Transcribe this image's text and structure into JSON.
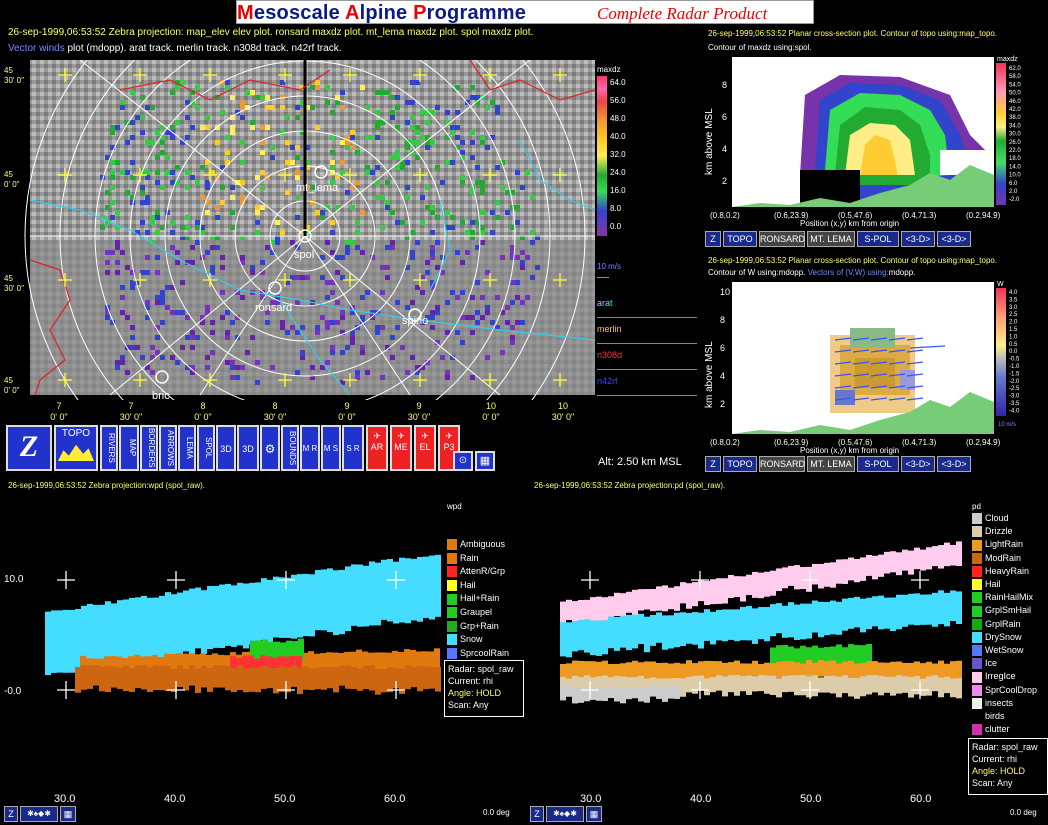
{
  "banner": {
    "w1_first": "M",
    "w1_rest": "esoscale ",
    "w2_first": "A",
    "w2_rest": "lpine ",
    "w3_first": "P",
    "w3_rest": "rogramme",
    "subtitle": "Complete Radar Product"
  },
  "main_plot": {
    "line1": "26-sep-1999,06:53:52  Zebra projection: map_elev elev plot.  ronsard maxdz plot.  mt_lema maxdz plot.  spol maxdz plot.",
    "line2_colored": "Vector winds",
    "line2_rest": " plot (mdopp). arat track.   merlin track.   n308d track.   n42rf track.",
    "lat_labels": [
      "45\n30' 0\"",
      "45\n0' 0\"",
      "45\n30' 0\"",
      "45\n0' 0\""
    ],
    "lon_labels": [
      "7\n0' 0\"",
      "7\n30' 0\"",
      "8\n0' 0\"",
      "8\n30' 0\"",
      "9\n0' 0\"",
      "9\n30' 0\"",
      "10\n0' 0\"",
      "10\n30' 0\""
    ],
    "site_labels": [
      "mt_lema",
      "spol",
      "ronsard",
      "spino",
      "bric"
    ],
    "altitude": "Alt: 2.50 km MSL",
    "scale_title": "maxdz",
    "scale_values": [
      "64.0",
      "56.0",
      "48.0",
      "40.0",
      "32.0",
      "24.0",
      "16.0",
      "8.0",
      "0.0"
    ],
    "vector_label": "10 m/s",
    "tracks": [
      {
        "name": "arat",
        "color": "#66ddff"
      },
      {
        "name": "merlin",
        "color": "#ffcc33"
      },
      {
        "name": "n308d",
        "color": "#ff3333"
      },
      {
        "name": "n42rf",
        "color": "#3344ff"
      }
    ]
  },
  "toolbar": {
    "z": "Z",
    "topo": "TOPO",
    "rivers": "RIVERS",
    "map": "MAP",
    "borders": "BORDERS",
    "arrows": "ARROWS",
    "lema": "LEMA",
    "spol": "SPOL",
    "3d_a": "3D",
    "3d_b": "3D",
    "bounds": "BOUNDS",
    "mr": "M R",
    "ms": "M S",
    "sr": "S R",
    "ar": "AR",
    "me": "ME",
    "el": "EL",
    "p3": "P3"
  },
  "xsec_top": {
    "line1": "26-sep-1999,06:53:52  Planar cross-section plot.  Contour of topo using:map_topo.",
    "line2": "Contour of maxdz using:spol.",
    "ylabel": "km above MSL",
    "y_ticks": [
      "8",
      "6",
      "4",
      "2"
    ],
    "x_ticks": [
      "(0.8,0.2)",
      "(0.6,23.9)",
      "(0.5,47.6)",
      "(0.4,71.3)",
      "(0.2,94.9)"
    ],
    "xlabel": "Position (x,y) km from origin",
    "scale_title": "maxdz",
    "scale_values": [
      "62.0",
      "58.0",
      "54.0",
      "50.0",
      "46.0",
      "42.0",
      "38.0",
      "34.0",
      "30.0",
      "26.0",
      "22.0",
      "18.0",
      "14.0",
      "10.0",
      "6.0",
      "2.0",
      "-2.0"
    ],
    "buttons": [
      "Z",
      "TOPO",
      "RONSARD",
      "MT. LEMA",
      "S-POL",
      "<3-D>",
      "<3-D>"
    ]
  },
  "xsec_mid": {
    "line1": "26-sep-1999,06:53:52  Planar cross-section plot.  Contour of topo using:map_topo.",
    "line2a": "Contour of W using:mdopp.  ",
    "line2b": "Vectors of (V,W) using:",
    "line2c": "mdopp.",
    "ylabel": "km above MSL",
    "y_ticks": [
      "10",
      "8",
      "6",
      "4",
      "2"
    ],
    "x_ticks": [
      "(0.8,0.2)",
      "(0.6,23.9)",
      "(0.5,47.6)",
      "(0.4,71.3)",
      "(0.2,94.9)"
    ],
    "xlabel": "Position (x,y) km from origin",
    "scale_title": "W",
    "scale_values": [
      "4.0",
      "3.5",
      "3.0",
      "2.5",
      "2.0",
      "1.5",
      "1.0",
      "0.5",
      "0.0",
      "-0.5",
      "-1.0",
      "-1.5",
      "-2.0",
      "-2.5",
      "-3.0",
      "-3.5",
      "-4.0"
    ],
    "vector_label": "10 m/s",
    "buttons": [
      "Z",
      "TOPO",
      "RONSARD",
      "MT. LEMA",
      "S-POL",
      "<3-D>",
      "<3-D>"
    ]
  },
  "wpd": {
    "title": "26-sep-1999,06:53:52  Zebra projection:wpd (spol_raw).",
    "field": "wpd",
    "y_ticks": [
      "10.0",
      "-0.0"
    ],
    "x_ticks": [
      "30.0",
      "40.0",
      "50.0",
      "60.0"
    ],
    "deg": "0.0 deg",
    "legend": [
      {
        "label": "Ambiguous",
        "color": "#e07a10"
      },
      {
        "label": "Rain",
        "color": "#e07a10"
      },
      {
        "label": "AttenR/Grp",
        "color": "#ff2222"
      },
      {
        "label": "Hail",
        "color": "#ffff22"
      },
      {
        "label": "Hail+Rain",
        "color": "#22cc22"
      },
      {
        "label": "Graupel",
        "color": "#22cc22"
      },
      {
        "label": "Grp+Rain",
        "color": "#22aa22"
      },
      {
        "label": "Snow",
        "color": "#44ddff"
      },
      {
        "label": "SprcoolRain",
        "color": "#5577ff"
      }
    ],
    "info": {
      "radar": "Radar: spol_raw",
      "current": "Current: rhi",
      "angle": "Angle: HOLD",
      "scan": "Scan: Any"
    }
  },
  "pd": {
    "title": "26-sep-1999,06:53:52  Zebra projection:pd (spol_raw).",
    "field": "pd",
    "x_ticks": [
      "30.0",
      "40.0",
      "50.0",
      "60.0"
    ],
    "deg": "0.0 deg",
    "legend": [
      {
        "label": "Cloud",
        "color": "#cccccc"
      },
      {
        "label": "Drizzle",
        "color": "#ddccaa"
      },
      {
        "label": "LightRain",
        "color": "#ee9922"
      },
      {
        "label": "ModRain",
        "color": "#cc6611"
      },
      {
        "label": "HeavyRain",
        "color": "#ff2222"
      },
      {
        "label": "Hail",
        "color": "#ffff22"
      },
      {
        "label": "RainHailMix",
        "color": "#22cc22"
      },
      {
        "label": "GrplSmHail",
        "color": "#22cc22"
      },
      {
        "label": "GrplRain",
        "color": "#11aa11"
      },
      {
        "label": "DrySnow",
        "color": "#44ddff"
      },
      {
        "label": "WetSnow",
        "color": "#5577ff"
      },
      {
        "label": "Ice",
        "color": "#6655cc"
      },
      {
        "label": "IrregIce",
        "color": "#ffccee"
      },
      {
        "label": "SprCoolDrop",
        "color": "#ee88ee"
      },
      {
        "label": "insects",
        "color": "#eeeeee"
      },
      {
        "label": "birds",
        "color": "#000000"
      },
      {
        "label": "clutter",
        "color": "#cc33aa"
      }
    ],
    "info": {
      "radar": "Radar: spol_raw",
      "current": "Current: rhi",
      "angle": "Angle: HOLD",
      "scan": "Scan: Any"
    }
  }
}
